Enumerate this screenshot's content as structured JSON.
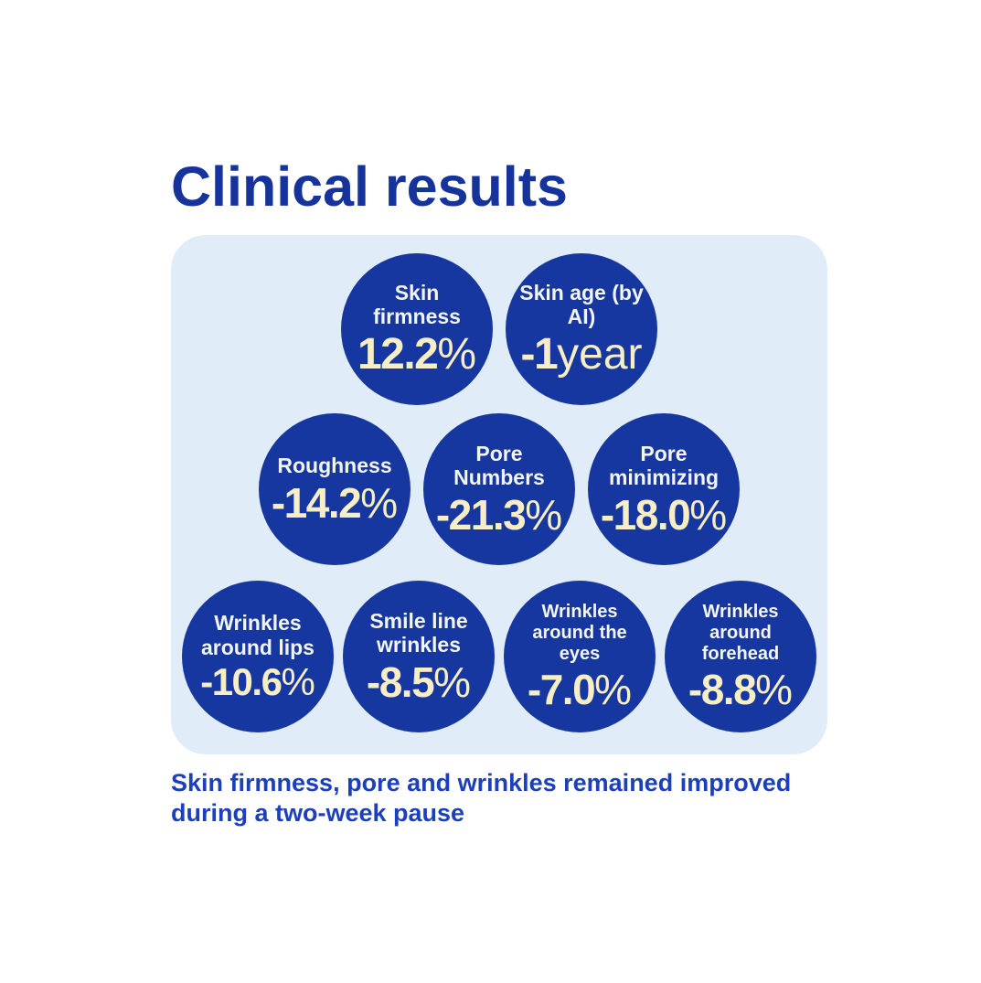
{
  "page": {
    "title": "Clinical results",
    "caption": "Skin firmness, pore and wrinkles remained improved during a two-week pause"
  },
  "colors": {
    "background": "#ffffff",
    "title_blue": "#15339b",
    "caption_blue": "#1c3fbd",
    "panel_bg": "#e0edf8",
    "bubble_bg": "#1737a0",
    "bubble_label_text": "#f3f5f2",
    "bubble_value_text": "#f8eec6"
  },
  "chart_data": {
    "type": "bubble",
    "title": "Clinical results",
    "note": "Skin firmness, pore and wrinkles remained improved during a two-week pause",
    "layout_rows": [
      [
        0,
        1
      ],
      [
        2,
        3,
        4
      ],
      [
        5,
        6,
        7,
        8
      ]
    ],
    "bubbles": [
      {
        "label": "Skin firmness",
        "value": "12.2",
        "unit": "%",
        "numeric": 12.2
      },
      {
        "label": "Skin age (by AI)",
        "value": "-1",
        "unit": "year",
        "numeric": -1
      },
      {
        "label": "Roughness",
        "value": "-14.2",
        "unit": "%",
        "numeric": -14.2
      },
      {
        "label": "Pore Numbers",
        "value": "-21.3",
        "unit": "%",
        "numeric": -21.3
      },
      {
        "label": "Pore minimizing",
        "value": "-18.0",
        "unit": "%",
        "numeric": -18.0
      },
      {
        "label": "Wrinkles around lips",
        "value": "-10.6",
        "unit": "%",
        "numeric": -10.6
      },
      {
        "label": "Smile line wrinkles",
        "value": "-8.5",
        "unit": "%",
        "numeric": -8.5
      },
      {
        "label": "Wrinkles around the eyes",
        "value": "-7.0",
        "unit": "%",
        "numeric": -7.0
      },
      {
        "label": "Wrinkles around forehead",
        "value": "-8.8",
        "unit": "%",
        "numeric": -8.8
      }
    ]
  }
}
